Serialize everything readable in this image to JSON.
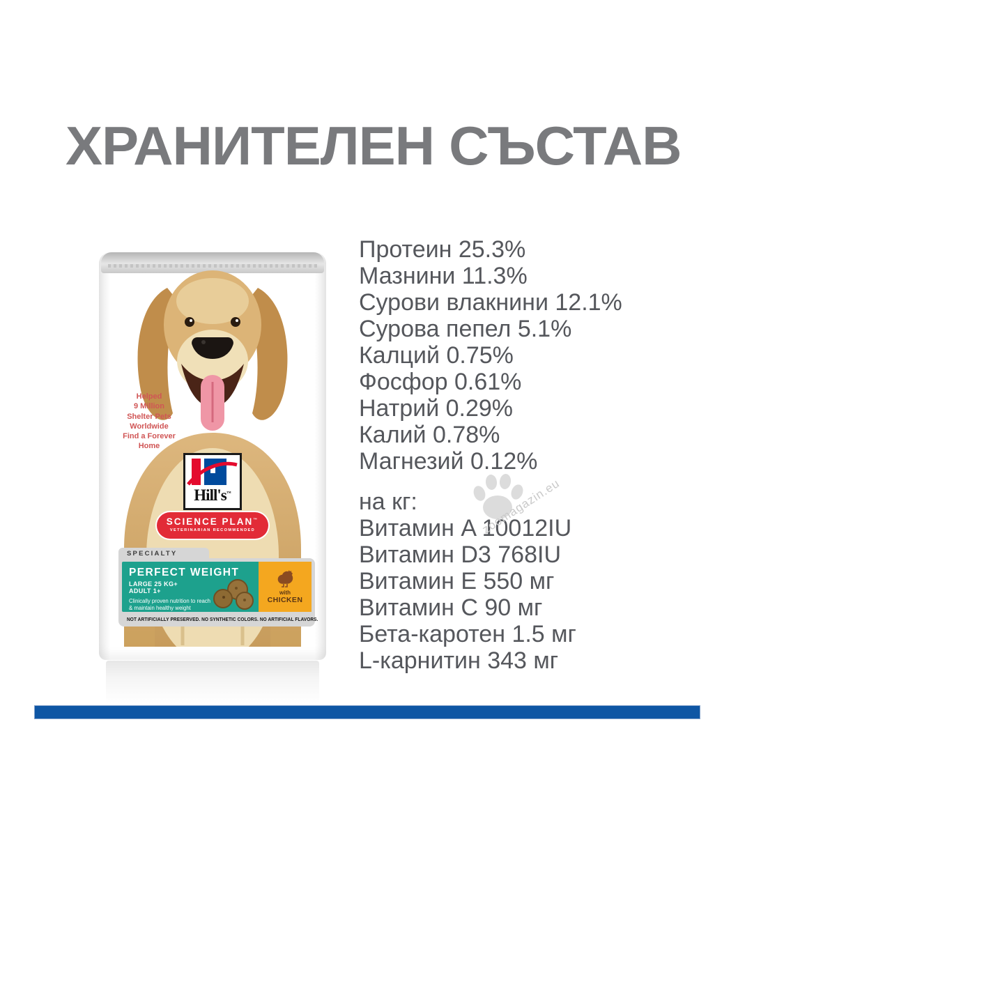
{
  "page": {
    "heading": "ХРАНИТЕЛЕН СЪСТАВ"
  },
  "nutrition": {
    "analysis": [
      "Протеин 25.3%",
      "Мазнини 11.3%",
      "Сурови влакнини 12.1%",
      "Сурова пепел 5.1%",
      "Калций 0.75%",
      "Фосфор 0.61%",
      "Натрий 0.29%",
      "Калий 0.78%",
      "Магнезий 0.12%"
    ],
    "per_kg_label": "на кг:",
    "per_kg": [
      "Витамин A 10012IU",
      "Витамин D3 768IU",
      "Витамин E 550 мг",
      "Витамин C 90 мг",
      "Бета-каротен 1.5 мг",
      "L-карнитин 343 мг"
    ]
  },
  "package": {
    "charity_note": "Helped\n9 Million\nShelter Pets\nWorldwide\nFind a Forever\nHome",
    "brand": "Hill's",
    "brand_tm": "™",
    "range": "SCIENCE PLAN",
    "range_tm": "™",
    "range_sub": "VETERINARIAN RECOMMENDED",
    "specialty_label": "SPECIALTY",
    "product_name": "PERFECT WEIGHT",
    "size_label": "LARGE 25 KG+",
    "age_label": "ADULT 1+",
    "claim": "Clinically proven nutrition to reach\n& maintain healthy weight",
    "flavor_prefix": "with",
    "flavor": "CHICKEN",
    "disclaimer": "NOT ARTIFICIALLY PRESERVED. NO SYNTHETIC COLORS. NO ARTIFICIAL FLAVORS."
  },
  "watermark": {
    "site": "zoomagazin.eu"
  },
  "colors": {
    "heading": "#797a7d",
    "body_text": "#55575c",
    "accent_bar": "#0e56a4",
    "teal_panel": "#1da18d",
    "orange_panel": "#f4a71f",
    "brand_red": "#e22b37",
    "hills_blue": "#004b9d",
    "charity_red": "#d05555"
  }
}
